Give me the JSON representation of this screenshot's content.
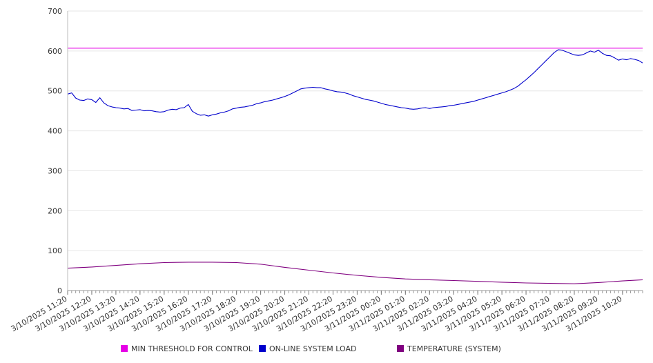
{
  "chart_data": {
    "type": "line",
    "title": "",
    "xlabel": "",
    "ylabel": "",
    "ylim": [
      0,
      700
    ],
    "y_ticks": [
      0,
      100,
      200,
      300,
      400,
      500,
      600,
      700
    ],
    "grid": "horizontal",
    "legend_position": "bottom",
    "x_start": "3/10/2025 11:20",
    "x_end": "3/11/2025 11:10",
    "x_tick_labels": [
      "3/10/2025 11:20",
      "3/10/2025 12:20",
      "3/10/2025 13:20",
      "3/10/2025 14:20",
      "3/10/2025 15:20",
      "3/10/2025 16:20",
      "3/10/2025 17:20",
      "3/10/2025 18:20",
      "3/10/2025 19:20",
      "3/10/2025 20:20",
      "3/10/2025 21:20",
      "3/10/2025 22:20",
      "3/10/2025 23:20",
      "3/11/2025 00:20",
      "3/11/2025 01:20",
      "3/11/2025 02:20",
      "3/11/2025 03:20",
      "3/11/2025 04:20",
      "3/11/2025 05:20",
      "3/11/2025 06:20",
      "3/11/2025 07:20",
      "3/11/2025 08:20",
      "3/11/2025 09:20",
      "3/11/2025 10:20"
    ],
    "series": [
      {
        "name": "MIN THRESHOLD FOR CONTROL",
        "color": "#e600e6",
        "points": [
          [
            "3/10/2025 11:20",
            607
          ],
          [
            "3/11/2025 11:10",
            607
          ]
        ]
      },
      {
        "name": "ON-LINE SYSTEM LOAD",
        "color": "#0000cc",
        "points": [
          [
            "3/10/2025 11:20",
            492
          ],
          [
            "3/10/2025 11:30",
            495
          ],
          [
            "3/10/2025 11:40",
            482
          ],
          [
            "3/10/2025 11:50",
            477
          ],
          [
            "3/10/2025 12:00",
            476
          ],
          [
            "3/10/2025 12:10",
            480
          ],
          [
            "3/10/2025 12:20",
            478
          ],
          [
            "3/10/2025 12:30",
            471
          ],
          [
            "3/10/2025 12:40",
            483
          ],
          [
            "3/10/2025 12:50",
            470
          ],
          [
            "3/10/2025 13:00",
            463
          ],
          [
            "3/10/2025 13:10",
            460
          ],
          [
            "3/10/2025 13:20",
            458
          ],
          [
            "3/10/2025 13:30",
            457
          ],
          [
            "3/10/2025 13:40",
            455
          ],
          [
            "3/10/2025 13:50",
            456
          ],
          [
            "3/10/2025 14:00",
            451
          ],
          [
            "3/10/2025 14:10",
            452
          ],
          [
            "3/10/2025 14:20",
            453
          ],
          [
            "3/10/2025 14:30",
            450
          ],
          [
            "3/10/2025 14:40",
            451
          ],
          [
            "3/10/2025 14:50",
            450
          ],
          [
            "3/10/2025 15:00",
            448
          ],
          [
            "3/10/2025 15:10",
            447
          ],
          [
            "3/10/2025 15:20",
            448
          ],
          [
            "3/10/2025 15:30",
            452
          ],
          [
            "3/10/2025 15:40",
            454
          ],
          [
            "3/10/2025 15:50",
            453
          ],
          [
            "3/10/2025 16:00",
            457
          ],
          [
            "3/10/2025 16:10",
            458
          ],
          [
            "3/10/2025 16:20",
            466
          ],
          [
            "3/10/2025 16:30",
            449
          ],
          [
            "3/10/2025 16:40",
            443
          ],
          [
            "3/10/2025 16:50",
            439
          ],
          [
            "3/10/2025 17:00",
            440
          ],
          [
            "3/10/2025 17:10",
            437
          ],
          [
            "3/10/2025 17:20",
            440
          ],
          [
            "3/10/2025 17:30",
            442
          ],
          [
            "3/10/2025 17:40",
            445
          ],
          [
            "3/10/2025 17:50",
            447
          ],
          [
            "3/10/2025 18:00",
            450
          ],
          [
            "3/10/2025 18:10",
            455
          ],
          [
            "3/10/2025 18:20",
            457
          ],
          [
            "3/10/2025 18:30",
            459
          ],
          [
            "3/10/2025 18:40",
            460
          ],
          [
            "3/10/2025 18:50",
            462
          ],
          [
            "3/10/2025 19:00",
            464
          ],
          [
            "3/10/2025 19:10",
            468
          ],
          [
            "3/10/2025 19:20",
            470
          ],
          [
            "3/10/2025 19:30",
            473
          ],
          [
            "3/10/2025 19:40",
            475
          ],
          [
            "3/10/2025 19:50",
            477
          ],
          [
            "3/10/2025 20:00",
            480
          ],
          [
            "3/10/2025 20:10",
            483
          ],
          [
            "3/10/2025 20:20",
            486
          ],
          [
            "3/10/2025 20:30",
            490
          ],
          [
            "3/10/2025 20:40",
            495
          ],
          [
            "3/10/2025 20:50",
            500
          ],
          [
            "3/10/2025 21:00",
            505
          ],
          [
            "3/10/2025 21:10",
            507
          ],
          [
            "3/10/2025 21:20",
            508
          ],
          [
            "3/10/2025 21:30",
            509
          ],
          [
            "3/10/2025 21:40",
            508
          ],
          [
            "3/10/2025 21:50",
            508
          ],
          [
            "3/10/2025 22:00",
            505
          ],
          [
            "3/10/2025 22:10",
            503
          ],
          [
            "3/10/2025 22:20",
            500
          ],
          [
            "3/10/2025 22:30",
            498
          ],
          [
            "3/10/2025 22:40",
            497
          ],
          [
            "3/10/2025 22:50",
            495
          ],
          [
            "3/10/2025 23:00",
            492
          ],
          [
            "3/10/2025 23:10",
            488
          ],
          [
            "3/10/2025 23:20",
            485
          ],
          [
            "3/10/2025 23:30",
            482
          ],
          [
            "3/10/2025 23:40",
            479
          ],
          [
            "3/10/2025 23:50",
            477
          ],
          [
            "3/11/2025 00:00",
            475
          ],
          [
            "3/11/2025 00:10",
            472
          ],
          [
            "3/11/2025 00:20",
            469
          ],
          [
            "3/11/2025 00:30",
            466
          ],
          [
            "3/11/2025 00:40",
            464
          ],
          [
            "3/11/2025 00:50",
            462
          ],
          [
            "3/11/2025 01:00",
            460
          ],
          [
            "3/11/2025 01:10",
            458
          ],
          [
            "3/11/2025 01:20",
            457
          ],
          [
            "3/11/2025 01:30",
            455
          ],
          [
            "3/11/2025 01:40",
            454
          ],
          [
            "3/11/2025 01:50",
            455
          ],
          [
            "3/11/2025 02:00",
            457
          ],
          [
            "3/11/2025 02:10",
            458
          ],
          [
            "3/11/2025 02:20",
            456
          ],
          [
            "3/11/2025 02:30",
            458
          ],
          [
            "3/11/2025 02:40",
            459
          ],
          [
            "3/11/2025 02:50",
            460
          ],
          [
            "3/11/2025 03:00",
            461
          ],
          [
            "3/11/2025 03:10",
            463
          ],
          [
            "3/11/2025 03:20",
            464
          ],
          [
            "3/11/2025 03:30",
            466
          ],
          [
            "3/11/2025 03:40",
            468
          ],
          [
            "3/11/2025 03:50",
            470
          ],
          [
            "3/11/2025 04:00",
            472
          ],
          [
            "3/11/2025 04:10",
            474
          ],
          [
            "3/11/2025 04:20",
            477
          ],
          [
            "3/11/2025 04:30",
            480
          ],
          [
            "3/11/2025 04:40",
            483
          ],
          [
            "3/11/2025 04:50",
            486
          ],
          [
            "3/11/2025 05:00",
            489
          ],
          [
            "3/11/2025 05:10",
            492
          ],
          [
            "3/11/2025 05:20",
            495
          ],
          [
            "3/11/2025 05:30",
            498
          ],
          [
            "3/11/2025 05:40",
            502
          ],
          [
            "3/11/2025 05:50",
            506
          ],
          [
            "3/11/2025 06:00",
            512
          ],
          [
            "3/11/2025 06:10",
            520
          ],
          [
            "3/11/2025 06:20",
            528
          ],
          [
            "3/11/2025 06:30",
            537
          ],
          [
            "3/11/2025 06:40",
            546
          ],
          [
            "3/11/2025 06:50",
            556
          ],
          [
            "3/11/2025 07:00",
            566
          ],
          [
            "3/11/2025 07:10",
            576
          ],
          [
            "3/11/2025 07:20",
            586
          ],
          [
            "3/11/2025 07:30",
            596
          ],
          [
            "3/11/2025 07:40",
            603
          ],
          [
            "3/11/2025 07:50",
            602
          ],
          [
            "3/11/2025 08:00",
            598
          ],
          [
            "3/11/2025 08:10",
            594
          ],
          [
            "3/11/2025 08:20",
            590
          ],
          [
            "3/11/2025 08:30",
            589
          ],
          [
            "3/11/2025 08:40",
            590
          ],
          [
            "3/11/2025 08:50",
            595
          ],
          [
            "3/11/2025 09:00",
            600
          ],
          [
            "3/11/2025 09:10",
            597
          ],
          [
            "3/11/2025 09:20",
            602
          ],
          [
            "3/11/2025 09:30",
            594
          ],
          [
            "3/11/2025 09:40",
            589
          ],
          [
            "3/11/2025 09:50",
            588
          ],
          [
            "3/11/2025 10:00",
            583
          ],
          [
            "3/11/2025 10:10",
            577
          ],
          [
            "3/11/2025 10:20",
            580
          ],
          [
            "3/11/2025 10:30",
            578
          ],
          [
            "3/11/2025 10:40",
            581
          ],
          [
            "3/11/2025 10:50",
            579
          ],
          [
            "3/11/2025 11:00",
            576
          ],
          [
            "3/11/2025 11:10",
            570
          ]
        ]
      },
      {
        "name": "TEMPERATURE (SYSTEM)",
        "color": "#800080",
        "points": [
          [
            "3/10/2025 11:20",
            56
          ],
          [
            "3/10/2025 12:20",
            59
          ],
          [
            "3/10/2025 13:20",
            63
          ],
          [
            "3/10/2025 14:20",
            67
          ],
          [
            "3/10/2025 15:20",
            70
          ],
          [
            "3/10/2025 16:20",
            71
          ],
          [
            "3/10/2025 17:20",
            71
          ],
          [
            "3/10/2025 18:20",
            70
          ],
          [
            "3/10/2025 19:20",
            66
          ],
          [
            "3/10/2025 20:20",
            58
          ],
          [
            "3/10/2025 21:20",
            51
          ],
          [
            "3/10/2025 22:20",
            44
          ],
          [
            "3/10/2025 23:20",
            38
          ],
          [
            "3/11/2025 00:20",
            33
          ],
          [
            "3/11/2025 01:20",
            29
          ],
          [
            "3/11/2025 02:20",
            27
          ],
          [
            "3/11/2025 03:20",
            25
          ],
          [
            "3/11/2025 04:20",
            23
          ],
          [
            "3/11/2025 05:20",
            21
          ],
          [
            "3/11/2025 06:20",
            19
          ],
          [
            "3/11/2025 07:20",
            18
          ],
          [
            "3/11/2025 08:20",
            17
          ],
          [
            "3/11/2025 09:20",
            20
          ],
          [
            "3/11/2025 10:20",
            24
          ],
          [
            "3/11/2025 11:10",
            27
          ]
        ]
      }
    ]
  }
}
